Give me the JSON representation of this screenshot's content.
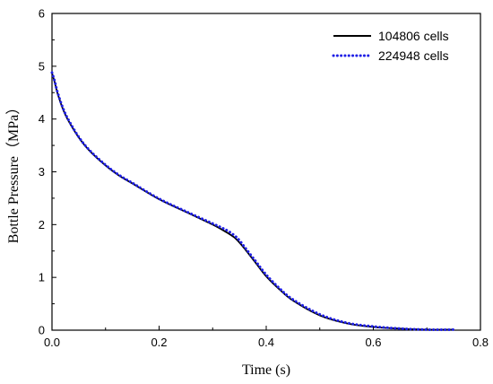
{
  "chart_data": {
    "type": "line",
    "xlabel": "Time (s)",
    "ylabel": "Bottle Pressure（MPa）",
    "xlim": [
      0,
      0.8
    ],
    "ylim": [
      0,
      6
    ],
    "x_ticks": [
      0,
      0.2,
      0.4,
      0.6,
      0.8
    ],
    "x_tick_labels": [
      "0.0",
      "0.2",
      "0.4",
      "0.6",
      "0.8"
    ],
    "y_ticks": [
      0,
      1,
      2,
      3,
      4,
      5,
      6
    ],
    "y_tick_labels": [
      "0",
      "1",
      "2",
      "3",
      "4",
      "5",
      "6"
    ],
    "grid": false,
    "legend_position": "top-right",
    "series": [
      {
        "name": "104806 cells",
        "color": "#000000",
        "style": "solid",
        "x": [
          0.0,
          0.005,
          0.01,
          0.02,
          0.03,
          0.05,
          0.07,
          0.1,
          0.125,
          0.15,
          0.2,
          0.25,
          0.3,
          0.325,
          0.34,
          0.35,
          0.36,
          0.38,
          0.4,
          0.425,
          0.45,
          0.5,
          0.55,
          0.6,
          0.65,
          0.7,
          0.75
        ],
        "y": [
          4.87,
          4.7,
          4.5,
          4.2,
          3.98,
          3.65,
          3.4,
          3.12,
          2.93,
          2.78,
          2.48,
          2.24,
          2.0,
          1.86,
          1.76,
          1.66,
          1.54,
          1.28,
          1.02,
          0.77,
          0.56,
          0.28,
          0.13,
          0.06,
          0.03,
          0.01,
          0.01
        ]
      },
      {
        "name": "224948 cells",
        "color": "#1f1fe6",
        "style": "dotted",
        "x": [
          0.0,
          0.005,
          0.01,
          0.02,
          0.03,
          0.05,
          0.07,
          0.1,
          0.125,
          0.15,
          0.2,
          0.25,
          0.3,
          0.325,
          0.34,
          0.35,
          0.36,
          0.38,
          0.4,
          0.425,
          0.45,
          0.5,
          0.55,
          0.6,
          0.65,
          0.7,
          0.75
        ],
        "y": [
          4.88,
          4.72,
          4.52,
          4.22,
          4.0,
          3.66,
          3.41,
          3.13,
          2.94,
          2.79,
          2.49,
          2.25,
          2.02,
          1.9,
          1.8,
          1.7,
          1.57,
          1.31,
          1.05,
          0.79,
          0.58,
          0.3,
          0.14,
          0.07,
          0.03,
          0.01,
          0.01
        ]
      }
    ]
  }
}
